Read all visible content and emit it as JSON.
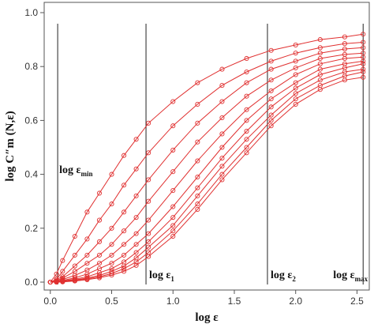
{
  "chart_data": {
    "type": "line",
    "title": "",
    "xlabel": "log ε",
    "ylabel": "log C″m (N,ε)",
    "xlim": [
      -0.05,
      2.6
    ],
    "ylim": [
      0,
      1.0
    ],
    "x_ticks": [
      0,
      0.5,
      1.0,
      1.5,
      2.0,
      2.5
    ],
    "x_tick_labels": [
      "0.0",
      "0.5",
      "1.0",
      "1.5",
      "2.0",
      "2.5"
    ],
    "y_ticks": [
      0,
      0.2,
      0.4,
      0.6,
      0.8,
      1.0
    ],
    "y_tick_labels": [
      "0.0",
      "0.2",
      "0.4",
      "0.6",
      "0.8",
      "1.0"
    ],
    "grid": false,
    "legend": "none",
    "marker": "open-circle",
    "series_color": "#e03030",
    "vertical_lines": [
      {
        "x": 0.06,
        "label": "log ε",
        "sub": "min"
      },
      {
        "x": 0.78,
        "label": "log  ε",
        "sub": "1"
      },
      {
        "x": 1.77,
        "label": "log  ε",
        "sub": "2"
      },
      {
        "x": 2.55,
        "label": "log  ε",
        "sub": "max"
      }
    ],
    "series": [
      {
        "values": [
          [
            0,
            0
          ],
          [
            0.05,
            0.03
          ],
          [
            0.1,
            0.08
          ],
          [
            0.2,
            0.17
          ],
          [
            0.3,
            0.26
          ],
          [
            0.4,
            0.33
          ],
          [
            0.5,
            0.4
          ],
          [
            0.6,
            0.47
          ],
          [
            0.7,
            0.53
          ],
          [
            0.8,
            0.59
          ],
          [
            1.0,
            0.67
          ],
          [
            1.2,
            0.74
          ],
          [
            1.4,
            0.79
          ],
          [
            1.6,
            0.83
          ],
          [
            1.8,
            0.86
          ],
          [
            2.0,
            0.88
          ],
          [
            2.2,
            0.9
          ],
          [
            2.4,
            0.91
          ],
          [
            2.55,
            0.92
          ]
        ]
      },
      {
        "values": [
          [
            0,
            0
          ],
          [
            0.05,
            0.01
          ],
          [
            0.1,
            0.04
          ],
          [
            0.2,
            0.1
          ],
          [
            0.3,
            0.16
          ],
          [
            0.4,
            0.23
          ],
          [
            0.5,
            0.29
          ],
          [
            0.6,
            0.36
          ],
          [
            0.7,
            0.42
          ],
          [
            0.8,
            0.48
          ],
          [
            1.0,
            0.58
          ],
          [
            1.2,
            0.66
          ],
          [
            1.4,
            0.73
          ],
          [
            1.6,
            0.78
          ],
          [
            1.8,
            0.82
          ],
          [
            2.0,
            0.85
          ],
          [
            2.2,
            0.87
          ],
          [
            2.4,
            0.885
          ],
          [
            2.55,
            0.89
          ]
        ]
      },
      {
        "values": [
          [
            0,
            0
          ],
          [
            0.05,
            0.01
          ],
          [
            0.1,
            0.02
          ],
          [
            0.2,
            0.06
          ],
          [
            0.3,
            0.1
          ],
          [
            0.4,
            0.15
          ],
          [
            0.5,
            0.2
          ],
          [
            0.6,
            0.26
          ],
          [
            0.7,
            0.32
          ],
          [
            0.8,
            0.38
          ],
          [
            1.0,
            0.49
          ],
          [
            1.2,
            0.59
          ],
          [
            1.4,
            0.67
          ],
          [
            1.6,
            0.74
          ],
          [
            1.8,
            0.79
          ],
          [
            2.0,
            0.82
          ],
          [
            2.2,
            0.85
          ],
          [
            2.4,
            0.865
          ],
          [
            2.55,
            0.87
          ]
        ]
      },
      {
        "values": [
          [
            0,
            0
          ],
          [
            0.05,
            0.005
          ],
          [
            0.1,
            0.015
          ],
          [
            0.2,
            0.04
          ],
          [
            0.3,
            0.07
          ],
          [
            0.4,
            0.1
          ],
          [
            0.5,
            0.14
          ],
          [
            0.6,
            0.19
          ],
          [
            0.7,
            0.24
          ],
          [
            0.8,
            0.3
          ],
          [
            1.0,
            0.41
          ],
          [
            1.2,
            0.52
          ],
          [
            1.4,
            0.61
          ],
          [
            1.6,
            0.69
          ],
          [
            1.8,
            0.75
          ],
          [
            2.0,
            0.795
          ],
          [
            2.2,
            0.83
          ],
          [
            2.4,
            0.845
          ],
          [
            2.55,
            0.85
          ]
        ]
      },
      {
        "values": [
          [
            0,
            0
          ],
          [
            0.05,
            0.003
          ],
          [
            0.1,
            0.01
          ],
          [
            0.2,
            0.025
          ],
          [
            0.3,
            0.045
          ],
          [
            0.4,
            0.07
          ],
          [
            0.5,
            0.1
          ],
          [
            0.6,
            0.14
          ],
          [
            0.7,
            0.18
          ],
          [
            0.8,
            0.23
          ],
          [
            1.0,
            0.34
          ],
          [
            1.2,
            0.45
          ],
          [
            1.4,
            0.55
          ],
          [
            1.6,
            0.64
          ],
          [
            1.8,
            0.71
          ],
          [
            2.0,
            0.77
          ],
          [
            2.2,
            0.81
          ],
          [
            2.4,
            0.83
          ],
          [
            2.55,
            0.835
          ]
        ]
      },
      {
        "values": [
          [
            0,
            0
          ],
          [
            0.05,
            0.002
          ],
          [
            0.1,
            0.006
          ],
          [
            0.2,
            0.016
          ],
          [
            0.3,
            0.03
          ],
          [
            0.4,
            0.05
          ],
          [
            0.5,
            0.07
          ],
          [
            0.6,
            0.1
          ],
          [
            0.7,
            0.14
          ],
          [
            0.8,
            0.18
          ],
          [
            1.0,
            0.28
          ],
          [
            1.2,
            0.39
          ],
          [
            1.4,
            0.5
          ],
          [
            1.6,
            0.6
          ],
          [
            1.8,
            0.68
          ],
          [
            2.0,
            0.74
          ],
          [
            2.2,
            0.79
          ],
          [
            2.4,
            0.81
          ],
          [
            2.55,
            0.82
          ]
        ]
      },
      {
        "values": [
          [
            0,
            0
          ],
          [
            0.05,
            0.001
          ],
          [
            0.1,
            0.004
          ],
          [
            0.2,
            0.011
          ],
          [
            0.3,
            0.02
          ],
          [
            0.4,
            0.035
          ],
          [
            0.5,
            0.05
          ],
          [
            0.6,
            0.075
          ],
          [
            0.7,
            0.11
          ],
          [
            0.8,
            0.15
          ],
          [
            1.0,
            0.24
          ],
          [
            1.2,
            0.35
          ],
          [
            1.4,
            0.46
          ],
          [
            1.6,
            0.56
          ],
          [
            1.8,
            0.65
          ],
          [
            2.0,
            0.72
          ],
          [
            2.2,
            0.77
          ],
          [
            2.4,
            0.795
          ],
          [
            2.55,
            0.81
          ]
        ]
      },
      {
        "values": [
          [
            0,
            0
          ],
          [
            0.05,
            0.001
          ],
          [
            0.1,
            0.003
          ],
          [
            0.2,
            0.008
          ],
          [
            0.3,
            0.015
          ],
          [
            0.4,
            0.025
          ],
          [
            0.5,
            0.04
          ],
          [
            0.6,
            0.06
          ],
          [
            0.7,
            0.09
          ],
          [
            0.8,
            0.13
          ],
          [
            1.0,
            0.21
          ],
          [
            1.2,
            0.32
          ],
          [
            1.4,
            0.43
          ],
          [
            1.6,
            0.53
          ],
          [
            1.8,
            0.62
          ],
          [
            2.0,
            0.7
          ],
          [
            2.2,
            0.75
          ],
          [
            2.4,
            0.78
          ],
          [
            2.55,
            0.79
          ]
        ]
      },
      {
        "values": [
          [
            0,
            0
          ],
          [
            0.05,
            0.0
          ],
          [
            0.1,
            0.002
          ],
          [
            0.2,
            0.006
          ],
          [
            0.3,
            0.012
          ],
          [
            0.4,
            0.02
          ],
          [
            0.5,
            0.032
          ],
          [
            0.6,
            0.05
          ],
          [
            0.7,
            0.075
          ],
          [
            0.8,
            0.11
          ],
          [
            1.0,
            0.19
          ],
          [
            1.2,
            0.29
          ],
          [
            1.4,
            0.4
          ],
          [
            1.6,
            0.5
          ],
          [
            1.8,
            0.6
          ],
          [
            2.0,
            0.68
          ],
          [
            2.2,
            0.73
          ],
          [
            2.4,
            0.765
          ],
          [
            2.55,
            0.78
          ]
        ]
      },
      {
        "values": [
          [
            0,
            0
          ],
          [
            0.05,
            0.0
          ],
          [
            0.1,
            0.001
          ],
          [
            0.2,
            0.004
          ],
          [
            0.3,
            0.009
          ],
          [
            0.4,
            0.016
          ],
          [
            0.5,
            0.026
          ],
          [
            0.6,
            0.04
          ],
          [
            0.7,
            0.062
          ],
          [
            0.8,
            0.095
          ],
          [
            1.0,
            0.17
          ],
          [
            1.2,
            0.27
          ],
          [
            1.4,
            0.38
          ],
          [
            1.6,
            0.48
          ],
          [
            1.8,
            0.58
          ],
          [
            2.0,
            0.66
          ],
          [
            2.2,
            0.715
          ],
          [
            2.4,
            0.75
          ],
          [
            2.55,
            0.76
          ]
        ]
      }
    ]
  }
}
